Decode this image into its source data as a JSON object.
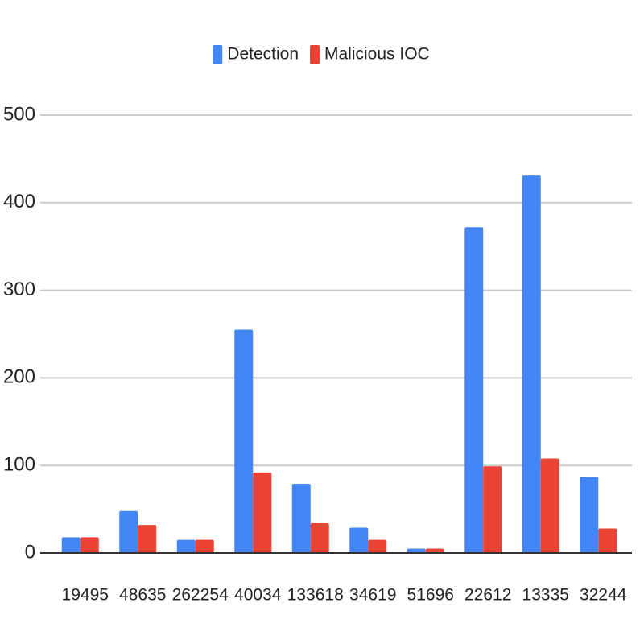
{
  "chart_data": {
    "type": "bar",
    "categories": [
      "19495",
      "48635",
      "262254",
      "40034",
      "133618",
      "34619",
      "51696",
      "22612",
      "13335",
      "32244"
    ],
    "series": [
      {
        "name": "Detection",
        "color": "#4285f4",
        "values": [
          18,
          48,
          15,
          255,
          79,
          29,
          5,
          372,
          431,
          87
        ]
      },
      {
        "name": "Malicious IOC",
        "color": "#ea4335",
        "values": [
          18,
          32,
          15,
          92,
          34,
          15,
          5,
          99,
          108,
          28
        ]
      }
    ],
    "ylim": [
      0,
      500
    ],
    "yticks": [
      0,
      100,
      200,
      300,
      400,
      500
    ],
    "grid": true,
    "legend": "top"
  }
}
